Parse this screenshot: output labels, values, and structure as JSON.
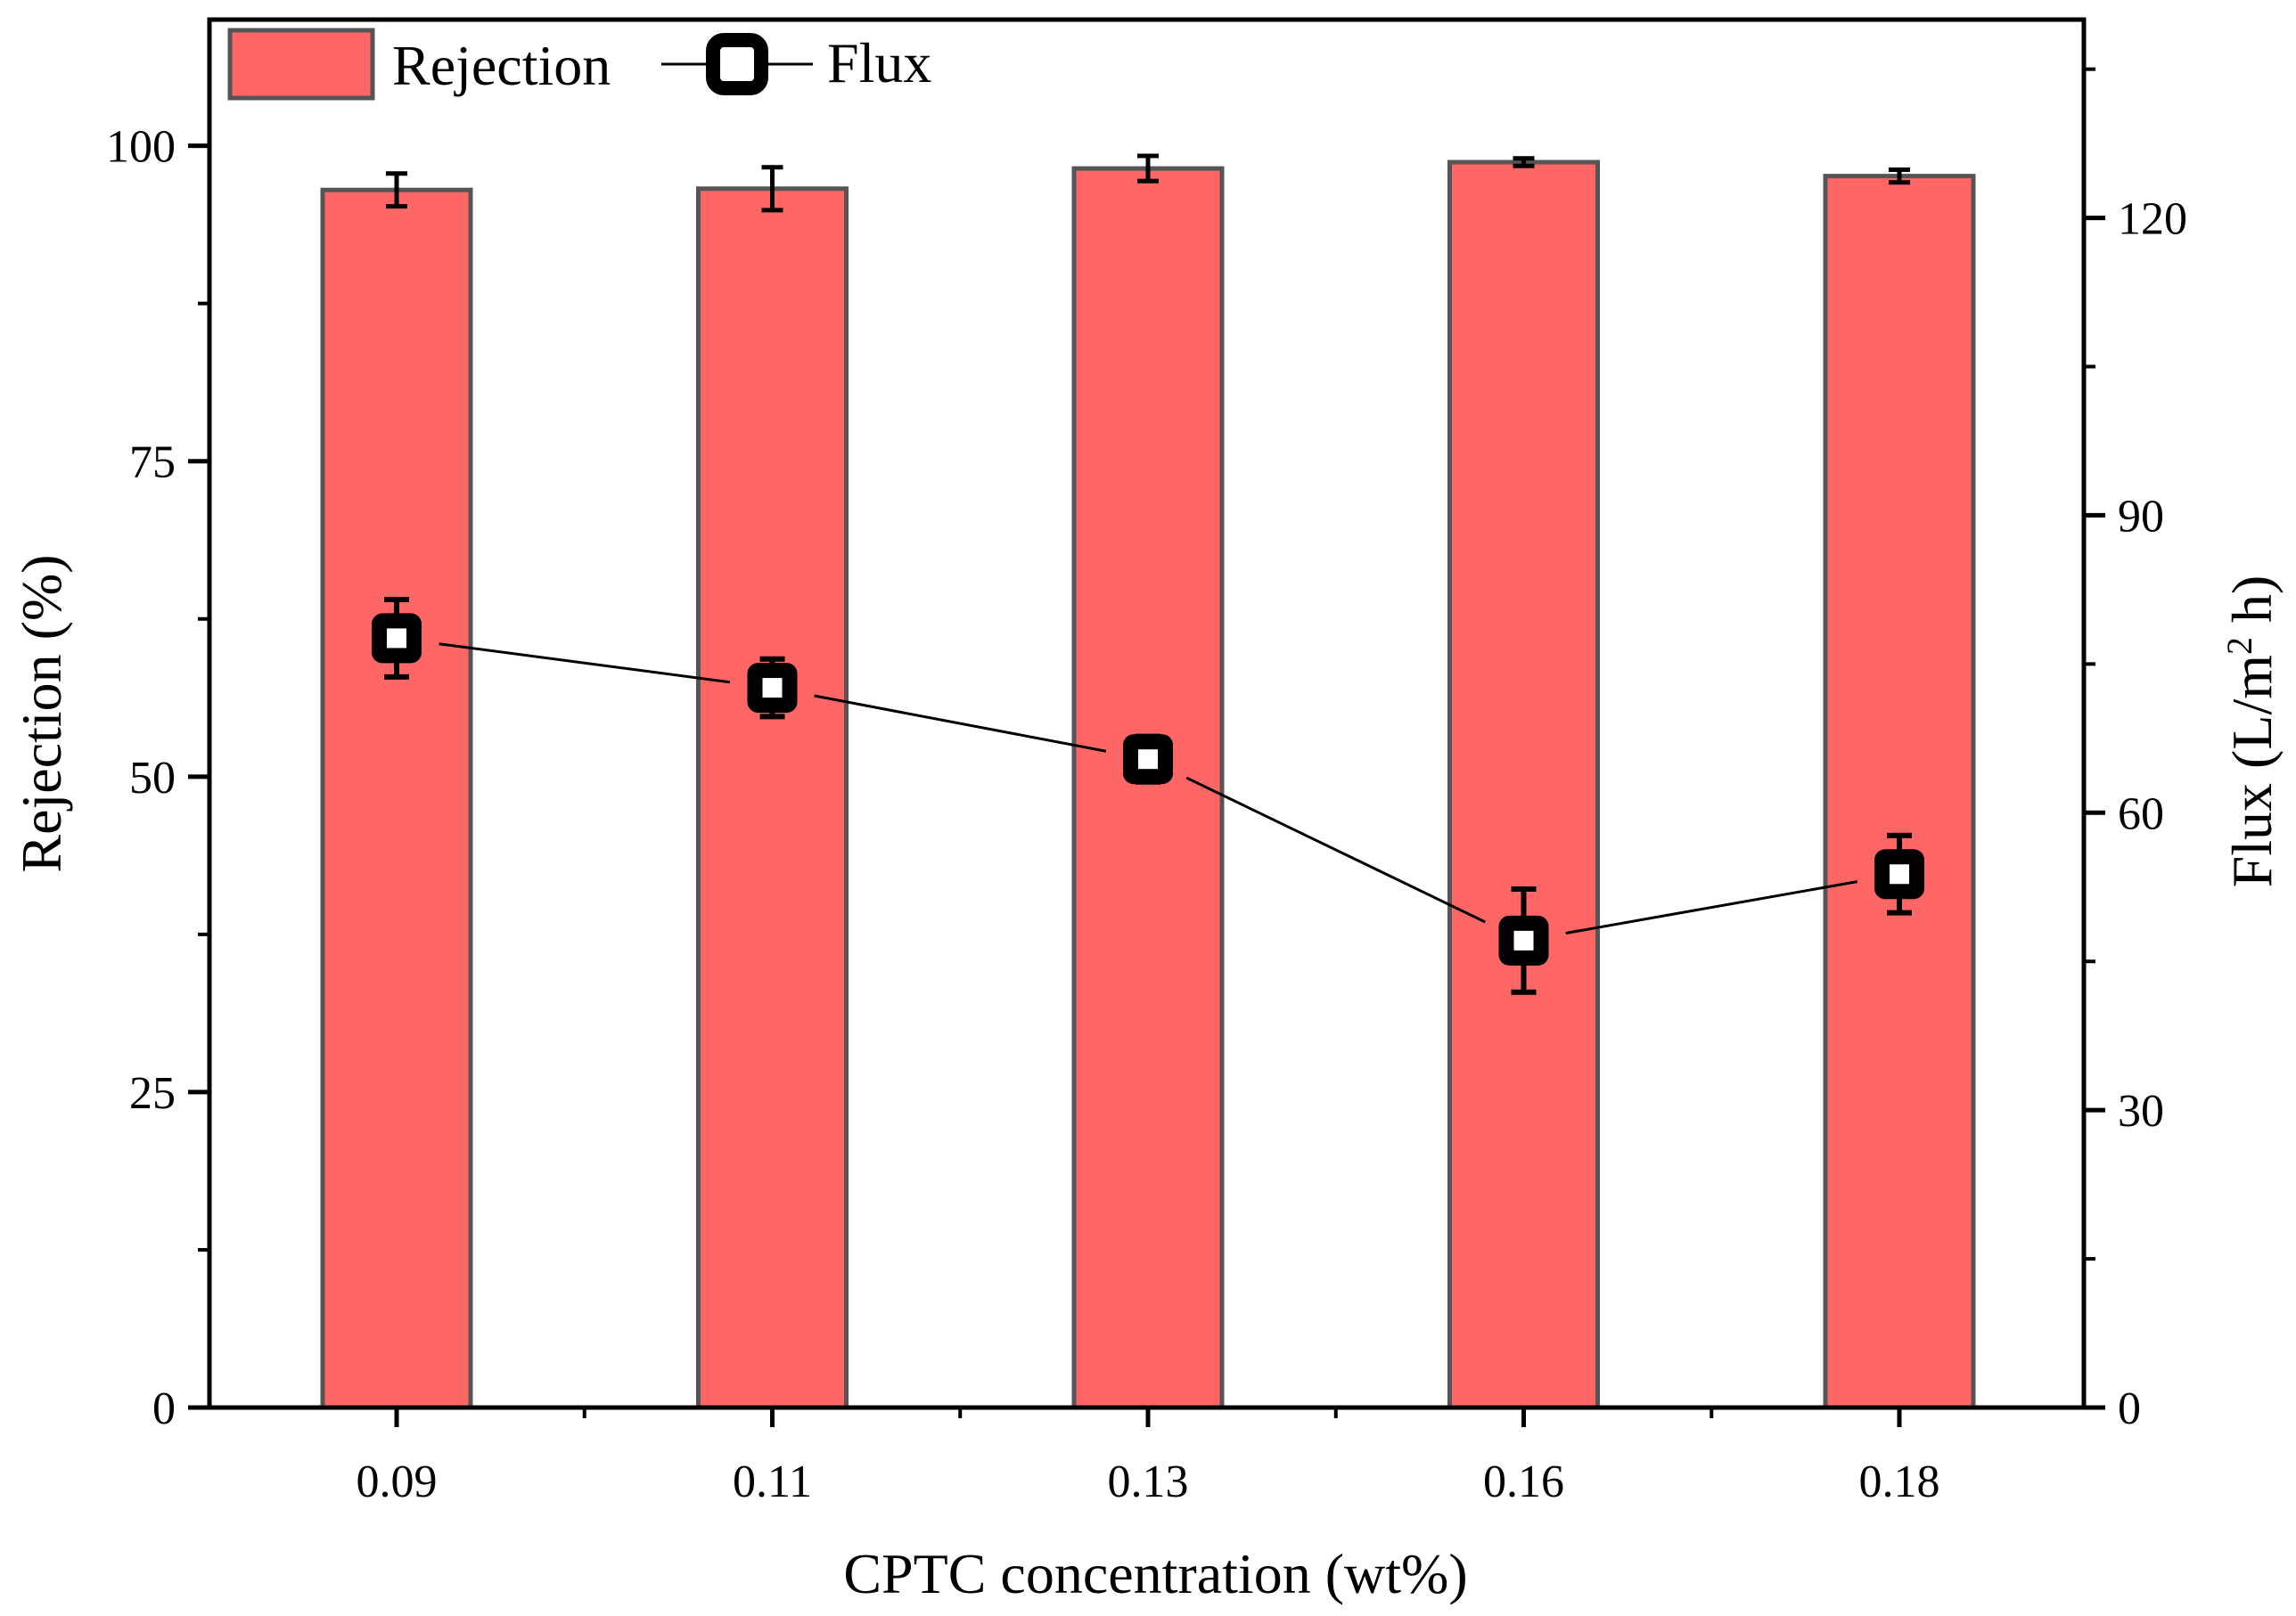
{
  "chart_data": {
    "type": "bar",
    "categories": [
      "0.09",
      "0.11",
      "0.13",
      "0.16",
      "0.18"
    ],
    "xlabel": "CPTC concentration (wt%)",
    "ylabel": "Rejection (%)",
    "y2label_parts": {
      "pre": "Flux (L/m",
      "sup": "2",
      "post": " h)"
    },
    "ylim": [
      0,
      100
    ],
    "ylim_max_display": 110,
    "y2lim": [
      0,
      140
    ],
    "yticks": [
      0,
      25,
      50,
      75,
      100
    ],
    "y2ticks": [
      0,
      30,
      60,
      90,
      120
    ],
    "series": [
      {
        "name": "Rejection",
        "kind": "bar",
        "axis": "left",
        "values": [
          96.5,
          96.6,
          98.2,
          98.7,
          97.6
        ],
        "errors": [
          1.3,
          1.7,
          1.0,
          0.3,
          0.5
        ]
      },
      {
        "name": "Flux",
        "kind": "line",
        "axis": "right",
        "values": [
          77.6,
          72.6,
          65.4,
          47.1,
          53.8
        ],
        "errors": [
          3.9,
          2.9,
          2.3,
          5.2,
          3.9
        ]
      }
    ],
    "legend": {
      "position": "top-left"
    },
    "grid": false,
    "colors": {
      "bar_fill": "#ff6666",
      "bar_edge": "#555555",
      "line": "#000000",
      "marker_fill": "#ffffff",
      "marker_edge": "#000000"
    }
  }
}
